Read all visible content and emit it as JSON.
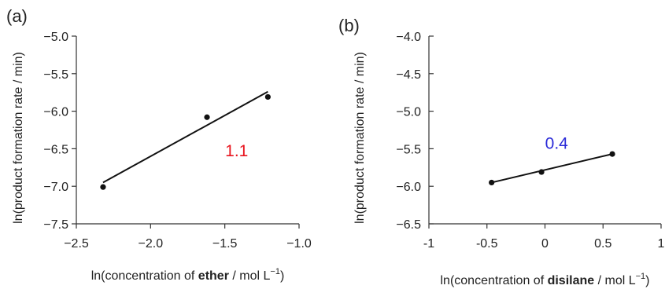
{
  "chart_data": [
    {
      "type": "scatter",
      "panel_label": "(a)",
      "xlabel_parts": [
        "ln(concentration of ",
        "ether",
        " / mol L",
        "−1",
        ")"
      ],
      "ylabel": "ln(product formation rate / min)",
      "xlim": [
        -2.5,
        -1.0
      ],
      "ylim": [
        -7.5,
        -5.0
      ],
      "x_ticks": [
        -2.5,
        -2.0,
        -1.5,
        -1.0
      ],
      "x_tick_labels": [
        "−2.5",
        "−2.0",
        "−1.5",
        "−1.0"
      ],
      "y_ticks": [
        -5.0,
        -5.5,
        -6.0,
        -6.5,
        -7.0,
        -7.5
      ],
      "y_tick_labels": [
        "−5.0",
        "−5.5",
        "−6.0",
        "−6.5",
        "−7.0",
        "−7.5"
      ],
      "series": [
        {
          "x": [
            -2.32,
            -1.62,
            -1.21
          ],
          "y": [
            -7.01,
            -6.08,
            -5.81
          ]
        }
      ],
      "fit_line": {
        "x": [
          -2.32,
          -1.21
        ],
        "y": [
          -6.95,
          -5.74
        ]
      },
      "annotation": {
        "text": "1.1",
        "x": -1.42,
        "y": -6.6,
        "color": "#e8141e"
      },
      "grid": false
    },
    {
      "type": "scatter",
      "panel_label": "(b)",
      "xlabel_parts": [
        "ln(concentration of ",
        "disilane",
        " / mol L",
        "−1",
        ")"
      ],
      "ylabel": "ln(product formation rate / min)",
      "xlim": [
        -1,
        1
      ],
      "ylim": [
        -6.5,
        -4.0
      ],
      "x_ticks": [
        -1,
        -0.5,
        0,
        0.5,
        1
      ],
      "x_tick_labels": [
        "-1",
        "-0.5",
        "0",
        "0.5",
        "1"
      ],
      "y_ticks": [
        -4.0,
        -4.5,
        -5.0,
        -5.5,
        -6.0,
        -6.5
      ],
      "y_tick_labels": [
        "−4.0",
        "−4.5",
        "−5.0",
        "−5.5",
        "−6.0",
        "−6.5"
      ],
      "series": [
        {
          "x": [
            -0.46,
            -0.03,
            0.58
          ],
          "y": [
            -5.95,
            -5.81,
            -5.57
          ]
        }
      ],
      "fit_line": {
        "x": [
          -0.46,
          0.58
        ],
        "y": [
          -5.95,
          -5.57
        ]
      },
      "annotation": {
        "text": "0.4",
        "x": 0.1,
        "y": -5.5,
        "color": "#2a2ad8"
      },
      "grid": false
    }
  ]
}
